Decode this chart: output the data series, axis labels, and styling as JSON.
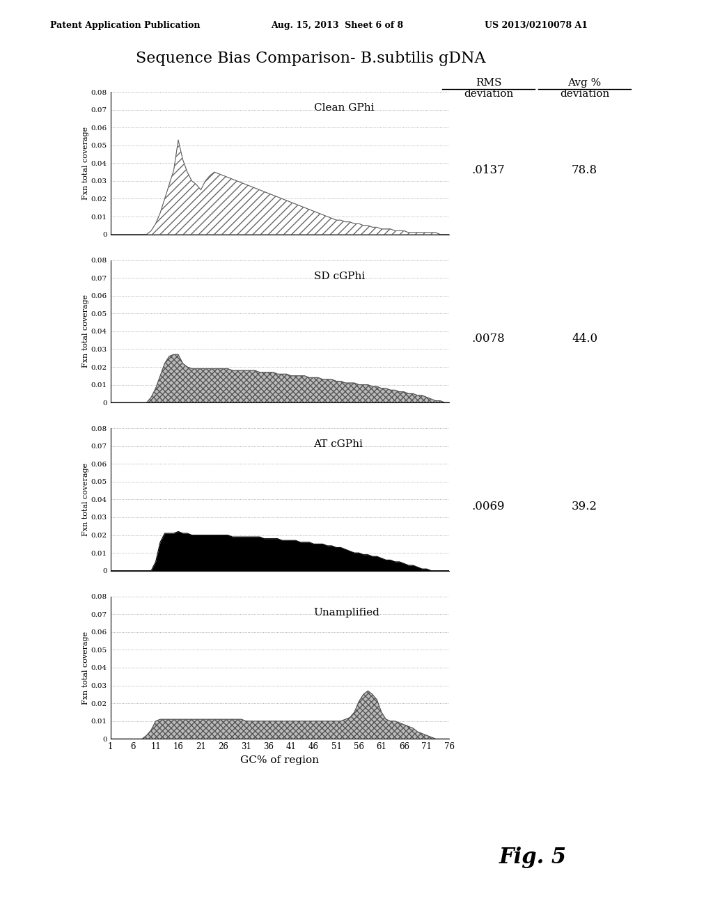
{
  "title": "Sequence Bias Comparison- B.subtilis gDNA",
  "xlabel": "GC% of region",
  "ylabel": "Fxn total coverage",
  "x_ticks": [
    1,
    6,
    11,
    16,
    21,
    26,
    31,
    36,
    41,
    46,
    51,
    56,
    61,
    66,
    71,
    76
  ],
  "ylim": [
    0,
    0.08
  ],
  "yticks": [
    0,
    0.01,
    0.02,
    0.03,
    0.04,
    0.05,
    0.06,
    0.07,
    0.08
  ],
  "subplots": [
    {
      "label": "Clean GPhi",
      "rms": ".0137",
      "avg": "78.8",
      "fill_style": "hatch",
      "hatch": "///",
      "fill_color": "white",
      "edge_color": "#666666",
      "data_x": [
        1,
        2,
        3,
        4,
        5,
        6,
        7,
        8,
        9,
        10,
        11,
        12,
        13,
        14,
        15,
        16,
        17,
        18,
        19,
        20,
        21,
        22,
        23,
        24,
        25,
        26,
        27,
        28,
        29,
        30,
        31,
        32,
        33,
        34,
        35,
        36,
        37,
        38,
        39,
        40,
        41,
        42,
        43,
        44,
        45,
        46,
        47,
        48,
        49,
        50,
        51,
        52,
        53,
        54,
        55,
        56,
        57,
        58,
        59,
        60,
        61,
        62,
        63,
        64,
        65,
        66,
        67,
        68,
        69,
        70,
        71,
        72,
        73,
        74,
        75,
        76
      ],
      "data_y": [
        0,
        0,
        0,
        0,
        0,
        0,
        0,
        0,
        0,
        0.002,
        0.006,
        0.012,
        0.02,
        0.028,
        0.036,
        0.053,
        0.042,
        0.035,
        0.03,
        0.028,
        0.025,
        0.03,
        0.033,
        0.035,
        0.034,
        0.033,
        0.032,
        0.031,
        0.03,
        0.029,
        0.028,
        0.027,
        0.026,
        0.025,
        0.024,
        0.023,
        0.022,
        0.021,
        0.02,
        0.019,
        0.018,
        0.017,
        0.016,
        0.015,
        0.014,
        0.013,
        0.012,
        0.011,
        0.01,
        0.009,
        0.008,
        0.008,
        0.007,
        0.007,
        0.006,
        0.006,
        0.005,
        0.005,
        0.004,
        0.004,
        0.003,
        0.003,
        0.003,
        0.002,
        0.002,
        0.002,
        0.001,
        0.001,
        0.001,
        0.001,
        0.001,
        0.001,
        0.001,
        0,
        0,
        0
      ]
    },
    {
      "label": "SD cGPhi",
      "rms": ".0078",
      "avg": "44.0",
      "fill_style": "hatch",
      "hatch": "xxxx",
      "fill_color": "#bbbbbb",
      "edge_color": "#555555",
      "data_x": [
        1,
        2,
        3,
        4,
        5,
        6,
        7,
        8,
        9,
        10,
        11,
        12,
        13,
        14,
        15,
        16,
        17,
        18,
        19,
        20,
        21,
        22,
        23,
        24,
        25,
        26,
        27,
        28,
        29,
        30,
        31,
        32,
        33,
        34,
        35,
        36,
        37,
        38,
        39,
        40,
        41,
        42,
        43,
        44,
        45,
        46,
        47,
        48,
        49,
        50,
        51,
        52,
        53,
        54,
        55,
        56,
        57,
        58,
        59,
        60,
        61,
        62,
        63,
        64,
        65,
        66,
        67,
        68,
        69,
        70,
        71,
        72,
        73,
        74,
        75,
        76
      ],
      "data_y": [
        0,
        0,
        0,
        0,
        0,
        0,
        0,
        0,
        0,
        0.003,
        0.008,
        0.015,
        0.022,
        0.026,
        0.027,
        0.027,
        0.022,
        0.02,
        0.019,
        0.019,
        0.019,
        0.019,
        0.019,
        0.019,
        0.019,
        0.019,
        0.019,
        0.018,
        0.018,
        0.018,
        0.018,
        0.018,
        0.018,
        0.017,
        0.017,
        0.017,
        0.017,
        0.016,
        0.016,
        0.016,
        0.015,
        0.015,
        0.015,
        0.015,
        0.014,
        0.014,
        0.014,
        0.013,
        0.013,
        0.013,
        0.012,
        0.012,
        0.011,
        0.011,
        0.011,
        0.01,
        0.01,
        0.01,
        0.009,
        0.009,
        0.008,
        0.008,
        0.007,
        0.007,
        0.006,
        0.006,
        0.005,
        0.005,
        0.004,
        0.004,
        0.003,
        0.002,
        0.001,
        0.001,
        0,
        0
      ]
    },
    {
      "label": "AT cGPhi",
      "rms": ".0069",
      "avg": "39.2",
      "fill_style": "solid",
      "hatch": "",
      "fill_color": "black",
      "edge_color": "black",
      "data_x": [
        1,
        2,
        3,
        4,
        5,
        6,
        7,
        8,
        9,
        10,
        11,
        12,
        13,
        14,
        15,
        16,
        17,
        18,
        19,
        20,
        21,
        22,
        23,
        24,
        25,
        26,
        27,
        28,
        29,
        30,
        31,
        32,
        33,
        34,
        35,
        36,
        37,
        38,
        39,
        40,
        41,
        42,
        43,
        44,
        45,
        46,
        47,
        48,
        49,
        50,
        51,
        52,
        53,
        54,
        55,
        56,
        57,
        58,
        59,
        60,
        61,
        62,
        63,
        64,
        65,
        66,
        67,
        68,
        69,
        70,
        71,
        72,
        73,
        74,
        75,
        76
      ],
      "data_y": [
        0,
        0,
        0,
        0,
        0,
        0,
        0,
        0,
        0,
        0,
        0.005,
        0.016,
        0.021,
        0.021,
        0.021,
        0.022,
        0.021,
        0.021,
        0.02,
        0.02,
        0.02,
        0.02,
        0.02,
        0.02,
        0.02,
        0.02,
        0.02,
        0.019,
        0.019,
        0.019,
        0.019,
        0.019,
        0.019,
        0.019,
        0.018,
        0.018,
        0.018,
        0.018,
        0.017,
        0.017,
        0.017,
        0.017,
        0.016,
        0.016,
        0.016,
        0.015,
        0.015,
        0.015,
        0.014,
        0.014,
        0.013,
        0.013,
        0.012,
        0.011,
        0.01,
        0.01,
        0.009,
        0.009,
        0.008,
        0.008,
        0.007,
        0.006,
        0.006,
        0.005,
        0.005,
        0.004,
        0.003,
        0.003,
        0.002,
        0.001,
        0.001,
        0,
        0,
        0,
        0,
        0
      ]
    },
    {
      "label": "Unamplified",
      "rms": "",
      "avg": "",
      "fill_style": "hatch",
      "hatch": "xxxx",
      "fill_color": "#bbbbbb",
      "edge_color": "#555555",
      "data_x": [
        1,
        2,
        3,
        4,
        5,
        6,
        7,
        8,
        9,
        10,
        11,
        12,
        13,
        14,
        15,
        16,
        17,
        18,
        19,
        20,
        21,
        22,
        23,
        24,
        25,
        26,
        27,
        28,
        29,
        30,
        31,
        32,
        33,
        34,
        35,
        36,
        37,
        38,
        39,
        40,
        41,
        42,
        43,
        44,
        45,
        46,
        47,
        48,
        49,
        50,
        51,
        52,
        53,
        54,
        55,
        56,
        57,
        58,
        59,
        60,
        61,
        62,
        63,
        64,
        65,
        66,
        67,
        68,
        69,
        70,
        71,
        72,
        73,
        74,
        75,
        76
      ],
      "data_y": [
        0,
        0,
        0,
        0,
        0,
        0,
        0,
        0,
        0.002,
        0.005,
        0.01,
        0.011,
        0.011,
        0.011,
        0.011,
        0.011,
        0.011,
        0.011,
        0.011,
        0.011,
        0.011,
        0.011,
        0.011,
        0.011,
        0.011,
        0.011,
        0.011,
        0.011,
        0.011,
        0.011,
        0.01,
        0.01,
        0.01,
        0.01,
        0.01,
        0.01,
        0.01,
        0.01,
        0.01,
        0.01,
        0.01,
        0.01,
        0.01,
        0.01,
        0.01,
        0.01,
        0.01,
        0.01,
        0.01,
        0.01,
        0.01,
        0.01,
        0.011,
        0.012,
        0.015,
        0.021,
        0.025,
        0.027,
        0.025,
        0.022,
        0.015,
        0.011,
        0.01,
        0.01,
        0.009,
        0.008,
        0.007,
        0.006,
        0.004,
        0.003,
        0.002,
        0.001,
        0,
        0,
        0,
        0
      ]
    }
  ],
  "patent_header_left": "Patent Application Publication",
  "patent_header_mid": "Aug. 15, 2013  Sheet 6 of 8",
  "patent_header_right": "US 2013/0210078 A1",
  "fig_label": "Fig. 5",
  "table_rows": [
    [
      ".0137",
      "78.8"
    ],
    [
      ".0078",
      "44.0"
    ],
    [
      ".0069",
      "39.2"
    ]
  ],
  "background_color": "white"
}
